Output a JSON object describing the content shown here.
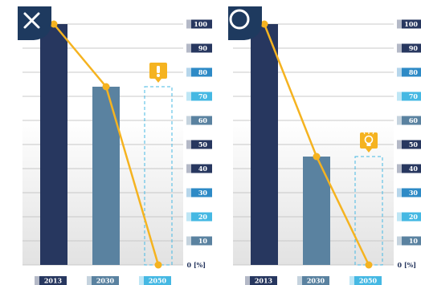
{
  "chart_data": [
    {
      "type": "bar",
      "badge_icon": "cross-icon",
      "categories": [
        "2013",
        "2030",
        "2050"
      ],
      "values": [
        100,
        74,
        0
      ],
      "projected_value": 74,
      "line_values": [
        100,
        74,
        0
      ],
      "marker_icon": "exclamation-icon",
      "ylim": [
        0,
        100
      ],
      "yticks": [
        10,
        20,
        30,
        40,
        50,
        60,
        70,
        80,
        90,
        100
      ],
      "axis_unit": "0 [%]",
      "grid": true
    },
    {
      "type": "bar",
      "badge_icon": "circle-icon",
      "categories": [
        "2013",
        "2030",
        "2050"
      ],
      "values": [
        100,
        45,
        0
      ],
      "projected_value": 45,
      "line_values": [
        100,
        45,
        0
      ],
      "marker_icon": "lightbulb-icon",
      "ylim": [
        0,
        100
      ],
      "yticks": [
        10,
        20,
        30,
        40,
        50,
        60,
        70,
        80,
        90,
        100
      ],
      "axis_unit": "0 [%]",
      "grid": true
    }
  ],
  "colors": {
    "badge": "#1e3a5f",
    "bar_2013": "#27375f",
    "bar_2030": "#5a82a0",
    "projection_outline": "#45b8e3",
    "line": "#f5b320",
    "grid": "#c8c8c8",
    "tick_colors": [
      "#5a82a0",
      "#45b8e3",
      "#2d8ac6",
      "#27375f",
      "#27375f",
      "#5a82a0",
      "#45b8e3",
      "#2d8ac6",
      "#27375f",
      "#27375f"
    ],
    "category_colors": [
      "#27375f",
      "#5a82a0",
      "#45b8e3"
    ]
  }
}
